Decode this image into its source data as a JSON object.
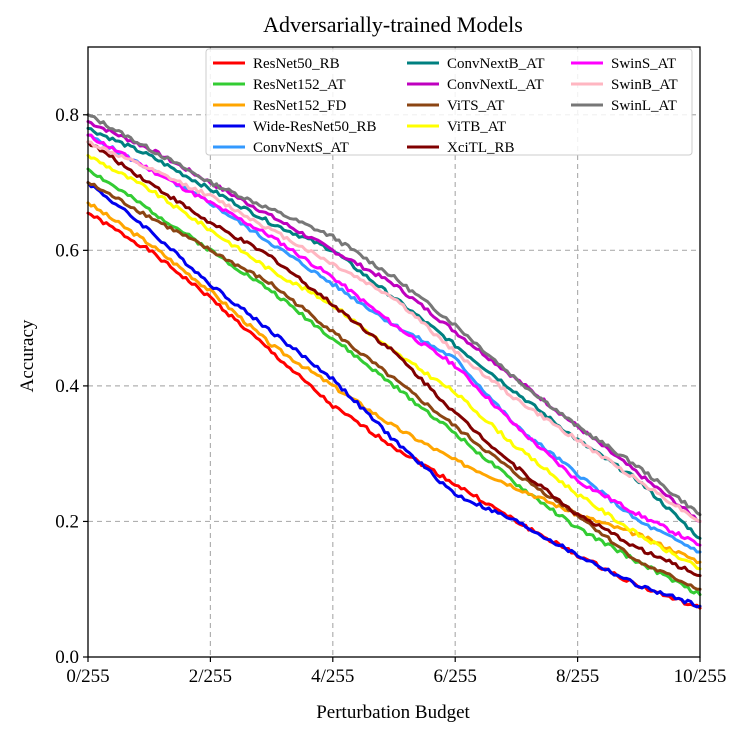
{
  "chart_data": {
    "type": "line",
    "title": "Adversarially-trained Models",
    "xlabel": "Perturbation Budget",
    "ylabel": "Accuracy",
    "xlim": [
      0,
      10
    ],
    "ylim": [
      0,
      0.9
    ],
    "x_ticks": [
      0,
      2,
      4,
      6,
      8,
      10
    ],
    "x_tick_labels": [
      "0/255",
      "2/255",
      "4/255",
      "6/255",
      "8/255",
      "10/255"
    ],
    "y_ticks": [
      0.0,
      0.2,
      0.4,
      0.6,
      0.8
    ],
    "y_tick_labels": [
      "0.0",
      "0.2",
      "0.4",
      "0.6",
      "0.8"
    ],
    "grid": true,
    "legend_position": "top-right",
    "x": [
      0,
      1,
      2,
      3,
      4,
      5,
      6,
      7,
      8,
      9,
      10
    ],
    "series": [
      {
        "name": "ResNet50_RB",
        "color": "#ff0000",
        "values": [
          0.655,
          0.6,
          0.53,
          0.45,
          0.37,
          0.31,
          0.255,
          0.2,
          0.15,
          0.105,
          0.072
        ]
      },
      {
        "name": "ResNet152_AT",
        "color": "#33cc33",
        "values": [
          0.72,
          0.66,
          0.6,
          0.54,
          0.47,
          0.4,
          0.33,
          0.255,
          0.19,
          0.14,
          0.092
        ]
      },
      {
        "name": "ResNet152_FD",
        "color": "#ffa500",
        "values": [
          0.67,
          0.61,
          0.54,
          0.46,
          0.4,
          0.34,
          0.29,
          0.25,
          0.21,
          0.18,
          0.14
        ]
      },
      {
        "name": "Wide-ResNet50_RB",
        "color": "#0000ee",
        "values": [
          0.7,
          0.63,
          0.55,
          0.48,
          0.41,
          0.32,
          0.24,
          0.2,
          0.15,
          0.105,
          0.075
        ]
      },
      {
        "name": "ConvNextS_AT",
        "color": "#3399ff",
        "values": [
          0.77,
          0.72,
          0.67,
          0.61,
          0.55,
          0.49,
          0.44,
          0.34,
          0.27,
          0.2,
          0.155
        ]
      },
      {
        "name": "ConvNextB_AT",
        "color": "#008080",
        "values": [
          0.78,
          0.74,
          0.69,
          0.64,
          0.6,
          0.53,
          0.46,
          0.39,
          0.32,
          0.26,
          0.175
        ]
      },
      {
        "name": "ConvNextL_AT",
        "color": "#bf00bf",
        "values": [
          0.79,
          0.75,
          0.7,
          0.65,
          0.6,
          0.55,
          0.48,
          0.41,
          0.34,
          0.27,
          0.2
        ]
      },
      {
        "name": "ViTS_AT",
        "color": "#8b4513",
        "values": [
          0.7,
          0.65,
          0.6,
          0.55,
          0.48,
          0.41,
          0.34,
          0.27,
          0.21,
          0.14,
          0.1
        ]
      },
      {
        "name": "ViTB_AT",
        "color": "#ffff00",
        "values": [
          0.74,
          0.69,
          0.63,
          0.57,
          0.52,
          0.45,
          0.39,
          0.31,
          0.24,
          0.18,
          0.13
        ]
      },
      {
        "name": "XciTL_RB",
        "color": "#800000",
        "values": [
          0.76,
          0.7,
          0.64,
          0.59,
          0.52,
          0.45,
          0.36,
          0.28,
          0.21,
          0.16,
          0.12
        ]
      },
      {
        "name": "SwinS_AT",
        "color": "#ff00ff",
        "values": [
          0.77,
          0.72,
          0.67,
          0.62,
          0.56,
          0.49,
          0.43,
          0.34,
          0.26,
          0.21,
          0.165
        ]
      },
      {
        "name": "SwinB_AT",
        "color": "#ffb6c1",
        "values": [
          0.76,
          0.72,
          0.68,
          0.63,
          0.58,
          0.53,
          0.45,
          0.38,
          0.32,
          0.26,
          0.2
        ]
      },
      {
        "name": "SwinL_AT",
        "color": "#777777",
        "values": [
          0.8,
          0.75,
          0.7,
          0.66,
          0.62,
          0.56,
          0.49,
          0.41,
          0.34,
          0.28,
          0.21
        ]
      }
    ]
  }
}
